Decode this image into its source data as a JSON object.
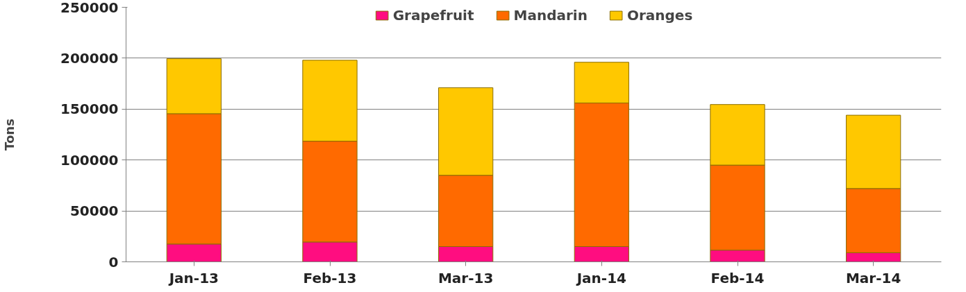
{
  "chart_data": {
    "type": "bar",
    "stacked": true,
    "ylabel": "Tons",
    "categories": [
      "Jan-13",
      "Feb-13",
      "Mar-13",
      "Jan-14",
      "Feb-14",
      "Mar-14"
    ],
    "series": [
      {
        "name": "Grapefruit",
        "color": "#ff0d80",
        "values": [
          17500,
          19500,
          15000,
          15000,
          11500,
          9000
        ]
      },
      {
        "name": "Mandarin",
        "color": "#ff6a00",
        "values": [
          128000,
          99000,
          70000,
          141000,
          83500,
          63000
        ]
      },
      {
        "name": "Oranges",
        "color": "#ffc800",
        "values": [
          54000,
          79500,
          86000,
          40000,
          59500,
          72000
        ]
      }
    ],
    "ylim": [
      0,
      250000
    ],
    "yticks": [
      0,
      50000,
      100000,
      150000,
      200000,
      250000
    ],
    "grid": "y",
    "legend": "top"
  }
}
